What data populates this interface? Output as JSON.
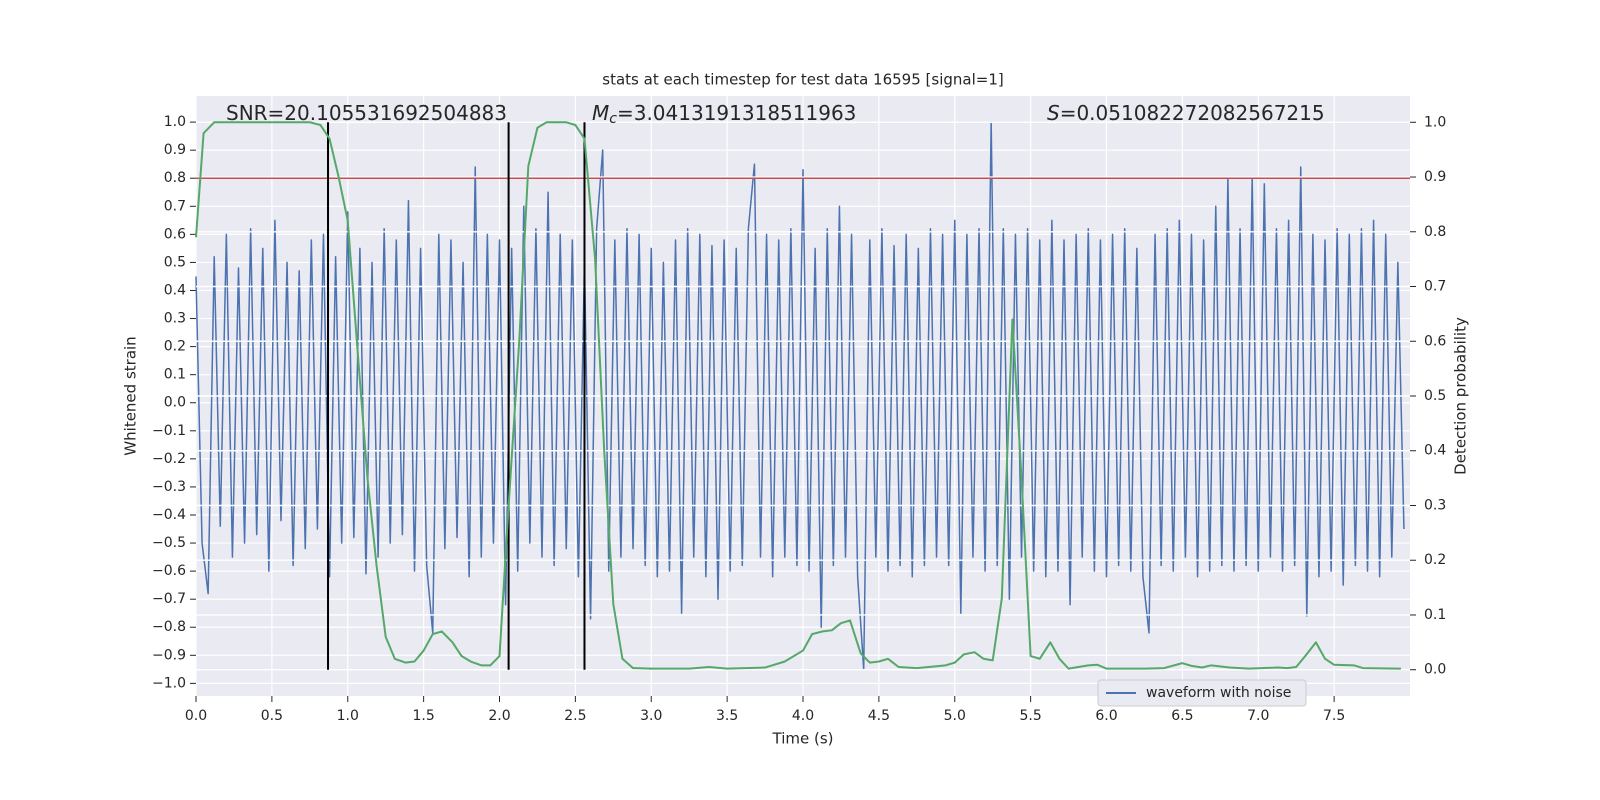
{
  "chart_data": {
    "type": "line",
    "title": "stats at each timestep for test data 16595 [signal=1]",
    "xlabel": "Time (s)",
    "ylabel": "Whitened strain",
    "y2label": "Detection probability",
    "annotations": [
      {
        "text": "SNR=20.105531692504883"
      },
      {
        "symbol": "M",
        "subscript": "c",
        "text": "=3.0413191318511963"
      },
      {
        "symbol": "S",
        "text": "=0.051082272082567215"
      }
    ],
    "xlim": [
      0,
      8
    ],
    "ylim": [
      -1.045,
      1.093
    ],
    "y2lim": [
      -0.048,
      1.048
    ],
    "xticks": [
      {
        "value": 0,
        "label": "0.0"
      },
      {
        "value": 0.5,
        "label": "0.5"
      },
      {
        "value": 1,
        "label": "1.0"
      },
      {
        "value": 1.5,
        "label": "1.5"
      },
      {
        "value": 2,
        "label": "2.0"
      },
      {
        "value": 2.5,
        "label": "2.5"
      },
      {
        "value": 3,
        "label": "3.0"
      },
      {
        "value": 3.5,
        "label": "3.5"
      },
      {
        "value": 4,
        "label": "4.0"
      },
      {
        "value": 4.5,
        "label": "4.5"
      },
      {
        "value": 5,
        "label": "5.0"
      },
      {
        "value": 5.5,
        "label": "5.5"
      },
      {
        "value": 6,
        "label": "6.0"
      },
      {
        "value": 6.5,
        "label": "6.5"
      },
      {
        "value": 7,
        "label": "7.0"
      },
      {
        "value": 7.5,
        "label": "7.5"
      }
    ],
    "yticks": [
      {
        "value": -1,
        "label": "−1.0"
      },
      {
        "value": -0.9,
        "label": "−0.9"
      },
      {
        "value": -0.8,
        "label": "−0.8"
      },
      {
        "value": -0.7,
        "label": "−0.7"
      },
      {
        "value": -0.6,
        "label": "−0.6"
      },
      {
        "value": -0.5,
        "label": "−0.5"
      },
      {
        "value": -0.4,
        "label": "−0.4"
      },
      {
        "value": -0.3,
        "label": "−0.3"
      },
      {
        "value": -0.2,
        "label": "−0.2"
      },
      {
        "value": -0.1,
        "label": "−0.1"
      },
      {
        "value": 0,
        "label": "0.0"
      },
      {
        "value": 0.1,
        "label": "0.1"
      },
      {
        "value": 0.2,
        "label": "0.2"
      },
      {
        "value": 0.3,
        "label": "0.3"
      },
      {
        "value": 0.4,
        "label": "0.4"
      },
      {
        "value": 0.5,
        "label": "0.5"
      },
      {
        "value": 0.6,
        "label": "0.6"
      },
      {
        "value": 0.7,
        "label": "0.7"
      },
      {
        "value": 0.8,
        "label": "0.8"
      },
      {
        "value": 0.9,
        "label": "0.9"
      },
      {
        "value": 1,
        "label": "1.0"
      }
    ],
    "y2ticks": [
      {
        "value": 0,
        "label": "0.0"
      },
      {
        "value": 0.1,
        "label": "0.1"
      },
      {
        "value": 0.2,
        "label": "0.2"
      },
      {
        "value": 0.3,
        "label": "0.3"
      },
      {
        "value": 0.4,
        "label": "0.4"
      },
      {
        "value": 0.5,
        "label": "0.5"
      },
      {
        "value": 0.6,
        "label": "0.6"
      },
      {
        "value": 0.7,
        "label": "0.7"
      },
      {
        "value": 0.8,
        "label": "0.8"
      },
      {
        "value": 0.9,
        "label": "0.9"
      },
      {
        "value": 1,
        "label": "1.0"
      }
    ],
    "grid": true,
    "grid2": true,
    "legend": "lower right",
    "hline": {
      "y": 0.8,
      "color": "#c44e52"
    },
    "vlines": {
      "x": [
        0.87,
        2.06,
        2.56
      ],
      "ymin": 0,
      "ymax": 1,
      "axis": "y2",
      "color": "#000000"
    },
    "series": [
      {
        "name": "waveform with noise",
        "color": "#4c72b0",
        "x": [
          0,
          0.04,
          0.08,
          0.12,
          0.16,
          0.2,
          0.24,
          0.28,
          0.32,
          0.36,
          0.4,
          0.44,
          0.48,
          0.52,
          0.56,
          0.6,
          0.64,
          0.68,
          0.72,
          0.76,
          0.8,
          0.84,
          0.88,
          0.92,
          0.96,
          1,
          1.04,
          1.08,
          1.12,
          1.16,
          1.2,
          1.24,
          1.28,
          1.32,
          1.36,
          1.4,
          1.44,
          1.48,
          1.52,
          1.56,
          1.6,
          1.64,
          1.68,
          1.72,
          1.76,
          1.8,
          1.84,
          1.88,
          1.92,
          1.96,
          2,
          2.04,
          2.08,
          2.12,
          2.16,
          2.2,
          2.24,
          2.28,
          2.32,
          2.36,
          2.4,
          2.44,
          2.48,
          2.52,
          2.56,
          2.6,
          2.64,
          2.68,
          2.72,
          2.76,
          2.8,
          2.84,
          2.88,
          2.92,
          2.96,
          3,
          3.04,
          3.08,
          3.12,
          3.16,
          3.2,
          3.24,
          3.28,
          3.32,
          3.36,
          3.4,
          3.44,
          3.48,
          3.52,
          3.56,
          3.6,
          3.64,
          3.68,
          3.72,
          3.76,
          3.8,
          3.84,
          3.88,
          3.92,
          3.96,
          4,
          4.04,
          4.08,
          4.12,
          4.16,
          4.2,
          4.24,
          4.28,
          4.32,
          4.36,
          4.4,
          4.44,
          4.48,
          4.52,
          4.56,
          4.6,
          4.64,
          4.68,
          4.72,
          4.76,
          4.8,
          4.84,
          4.88,
          4.92,
          4.96,
          5,
          5.04,
          5.08,
          5.12,
          5.16,
          5.2,
          5.24,
          5.28,
          5.32,
          5.36,
          5.4,
          5.44,
          5.48,
          5.52,
          5.56,
          5.6,
          5.64,
          5.68,
          5.72,
          5.76,
          5.8,
          5.84,
          5.88,
          5.92,
          5.96,
          6,
          6.04,
          6.08,
          6.12,
          6.16,
          6.2,
          6.24,
          6.28,
          6.32,
          6.36,
          6.4,
          6.44,
          6.48,
          6.52,
          6.56,
          6.6,
          6.64,
          6.68,
          6.72,
          6.76,
          6.8,
          6.84,
          6.88,
          6.92,
          6.96,
          7,
          7.04,
          7.08,
          7.12,
          7.16,
          7.2,
          7.24,
          7.28,
          7.32,
          7.36,
          7.4,
          7.44,
          7.48,
          7.52,
          7.56,
          7.6,
          7.64,
          7.68,
          7.72,
          7.76,
          7.8,
          7.84,
          7.88,
          7.92,
          7.96
        ],
        "values": [
          0.45,
          -0.5,
          -0.68,
          0.52,
          -0.44,
          0.6,
          -0.55,
          0.48,
          -0.5,
          0.62,
          -0.47,
          0.55,
          -0.6,
          0.65,
          -0.42,
          0.5,
          -0.58,
          0.47,
          -0.52,
          0.58,
          -0.45,
          0.6,
          -0.62,
          0.52,
          -0.5,
          0.68,
          -0.48,
          0.55,
          -0.61,
          0.5,
          -0.55,
          0.62,
          -0.5,
          0.58,
          -0.47,
          0.72,
          -0.6,
          0.55,
          -0.58,
          -0.82,
          0.6,
          -0.52,
          0.58,
          -0.48,
          0.5,
          -0.62,
          0.84,
          -0.55,
          0.6,
          -0.5,
          0.58,
          -0.72,
          0.55,
          -0.6,
          0.7,
          -0.5,
          0.62,
          -0.55,
          0.75,
          -0.58,
          0.6,
          -0.52,
          0.58,
          -0.62,
          0.5,
          -0.77,
          0.62,
          0.9,
          -0.6,
          0.58,
          -0.55,
          0.62,
          -0.52,
          0.6,
          -0.58,
          0.55,
          -0.62,
          0.5,
          -0.6,
          0.58,
          -0.75,
          0.62,
          -0.55,
          0.6,
          -0.62,
          0.56,
          -0.7,
          0.58,
          -0.6,
          0.55,
          -0.58,
          0.62,
          0.85,
          -0.55,
          0.6,
          -0.62,
          0.58,
          -0.55,
          0.62,
          -0.58,
          0.83,
          -0.6,
          0.55,
          -0.8,
          0.62,
          -0.58,
          0.7,
          -0.55,
          0.6,
          -0.62,
          -0.95,
          0.58,
          -0.55,
          0.62,
          -0.6,
          0.56,
          -0.58,
          0.6,
          -0.62,
          0.55,
          -0.58,
          0.62,
          -0.55,
          0.6,
          -0.58,
          0.65,
          -0.75,
          0.6,
          -0.55,
          0.62,
          -0.6,
          1.0,
          -0.58,
          0.62,
          -0.7,
          0.6,
          -0.55,
          0.62,
          -0.6,
          0.58,
          -0.62,
          0.65,
          -0.6,
          0.58,
          -0.72,
          0.6,
          -0.55,
          0.62,
          -0.6,
          0.58,
          -0.62,
          0.6,
          -0.58,
          0.62,
          -0.6,
          0.55,
          -0.62,
          -0.82,
          0.6,
          -0.58,
          0.62,
          -0.6,
          0.65,
          -0.55,
          0.6,
          -0.62,
          0.58,
          -0.6,
          0.7,
          -0.58,
          0.8,
          -0.6,
          0.62,
          -0.58,
          0.8,
          -0.6,
          0.78,
          -0.55,
          0.62,
          -0.6,
          0.65,
          -0.58,
          0.84,
          -0.76,
          0.6,
          -0.62,
          0.58,
          -0.6,
          0.62,
          -0.65,
          0.6,
          -0.58,
          0.62,
          -0.6,
          0.65,
          -0.62,
          0.6,
          -0.55,
          0.5,
          -0.45
        ]
      },
      {
        "color": "#55a868",
        "axis": "y2",
        "x": [
          0,
          0.05,
          0.12,
          0.25,
          0.5,
          0.75,
          0.82,
          0.88,
          0.94,
          1.0,
          1.06,
          1.13,
          1.19,
          1.25,
          1.31,
          1.38,
          1.44,
          1.5,
          1.56,
          1.62,
          1.69,
          1.75,
          1.81,
          1.88,
          1.94,
          2.0,
          2.06,
          2.13,
          2.19,
          2.25,
          2.31,
          2.44,
          2.5,
          2.56,
          2.63,
          2.69,
          2.75,
          2.81,
          2.88,
          3.0,
          3.25,
          3.38,
          3.5,
          3.75,
          3.88,
          4.0,
          4.06,
          4.13,
          4.19,
          4.25,
          4.31,
          4.38,
          4.44,
          4.5,
          4.56,
          4.63,
          4.75,
          4.94,
          5.0,
          5.06,
          5.13,
          5.19,
          5.25,
          5.31,
          5.38,
          5.44,
          5.5,
          5.56,
          5.63,
          5.69,
          5.75,
          5.88,
          5.94,
          6.0,
          6.25,
          6.38,
          6.5,
          6.56,
          6.63,
          6.69,
          6.81,
          6.94,
          7.13,
          7.19,
          7.25,
          7.31,
          7.38,
          7.44,
          7.5,
          7.63,
          7.69,
          7.94
        ],
        "values": [
          0.79,
          0.98,
          1.0,
          1.0,
          1.0,
          1.0,
          0.995,
          0.97,
          0.9,
          0.82,
          0.6,
          0.35,
          0.19,
          0.06,
          0.02,
          0.013,
          0.015,
          0.035,
          0.065,
          0.07,
          0.05,
          0.025,
          0.015,
          0.008,
          0.008,
          0.025,
          0.3,
          0.6,
          0.92,
          0.99,
          1.0,
          1.0,
          0.995,
          0.97,
          0.75,
          0.4,
          0.12,
          0.02,
          0.003,
          0.002,
          0.002,
          0.005,
          0.002,
          0.004,
          0.015,
          0.035,
          0.065,
          0.07,
          0.072,
          0.085,
          0.09,
          0.03,
          0.013,
          0.015,
          0.02,
          0.005,
          0.003,
          0.008,
          0.013,
          0.028,
          0.032,
          0.02,
          0.017,
          0.13,
          0.64,
          0.35,
          0.025,
          0.02,
          0.05,
          0.02,
          0.002,
          0.008,
          0.009,
          0.002,
          0.002,
          0.003,
          0.012,
          0.007,
          0.004,
          0.008,
          0.004,
          0.002,
          0.004,
          0.003,
          0.005,
          0.025,
          0.05,
          0.02,
          0.009,
          0.008,
          0.003,
          0.002
        ]
      }
    ]
  }
}
